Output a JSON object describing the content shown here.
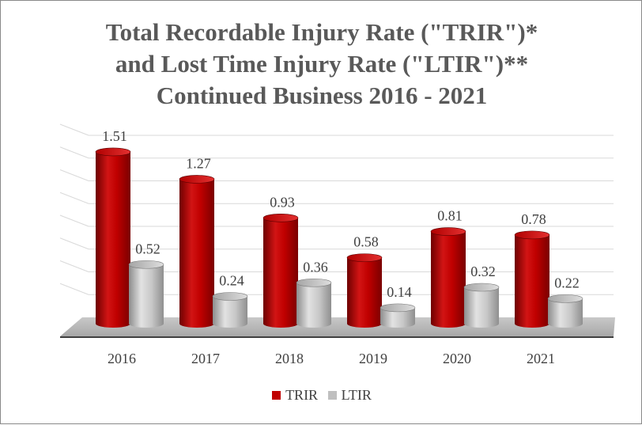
{
  "chart_data": {
    "type": "bar",
    "title_lines": [
      "Total Recordable Injury Rate (\"TRIR\")*",
      "and Lost Time Injury Rate (\"LTIR\")**",
      "Continued Business  2016 - 2021"
    ],
    "categories": [
      "2016",
      "2017",
      "2018",
      "2019",
      "2020",
      "2021"
    ],
    "series": [
      {
        "name": "TRIR",
        "values": [
          1.51,
          1.27,
          0.93,
          0.58,
          0.81,
          0.78
        ],
        "value_labels": [
          "1.51",
          "1.27",
          "0.93",
          "0.58",
          "0.81",
          "0.78"
        ],
        "color": "#c00000"
      },
      {
        "name": "LTIR",
        "values": [
          0.52,
          0.24,
          0.36,
          0.14,
          0.32,
          0.22
        ],
        "value_labels": [
          "0.52",
          "0.24",
          "0.36",
          "0.14",
          "0.32",
          "0.22"
        ],
        "color": "#bfbfbf"
      }
    ],
    "ylim": [
      0,
      1.6
    ],
    "grid": true,
    "legend": "bottom",
    "xlabel": "",
    "ylabel": ""
  }
}
